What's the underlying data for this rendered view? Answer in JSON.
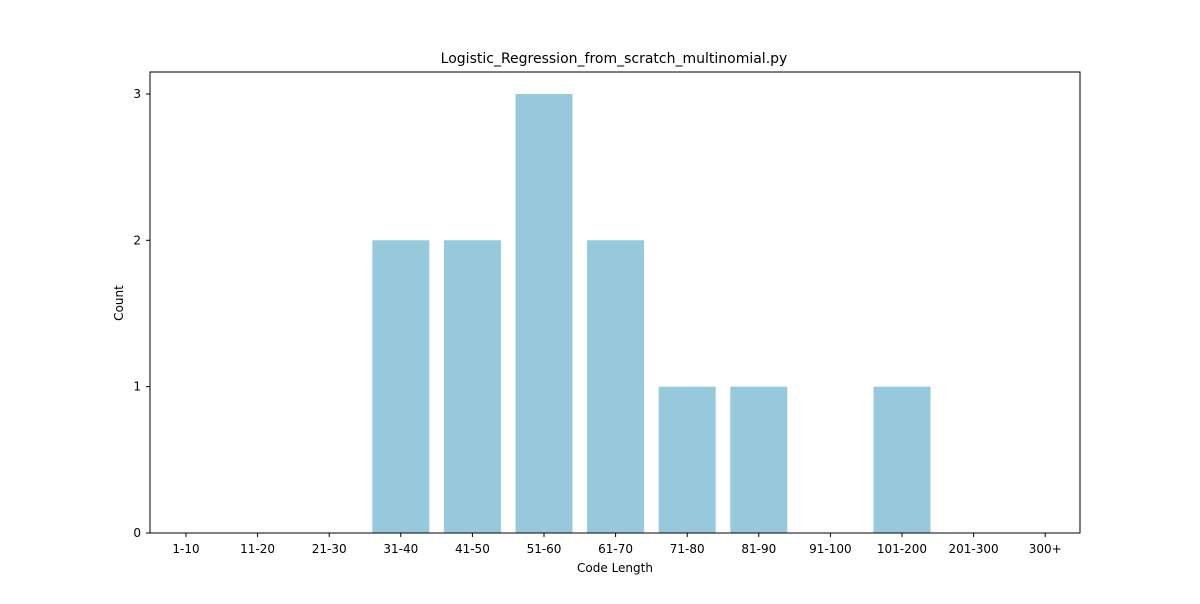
{
  "chart_data": {
    "type": "bar",
    "title": "Logistic_Regression_from_scratch_multinomial.py",
    "xlabel": "Code Length",
    "ylabel": "Count",
    "categories": [
      "1-10",
      "11-20",
      "21-30",
      "31-40",
      "41-50",
      "51-60",
      "61-70",
      "71-80",
      "81-90",
      "91-100",
      "101-200",
      "201-300",
      "300+"
    ],
    "values": [
      0,
      0,
      0,
      2,
      2,
      3,
      2,
      1,
      1,
      0,
      1,
      0,
      0
    ],
    "ylim": [
      0,
      3.15
    ],
    "yticks": [
      0,
      1,
      2,
      3
    ],
    "bar_color": "#96c9dc",
    "grid": false,
    "legend": null
  }
}
